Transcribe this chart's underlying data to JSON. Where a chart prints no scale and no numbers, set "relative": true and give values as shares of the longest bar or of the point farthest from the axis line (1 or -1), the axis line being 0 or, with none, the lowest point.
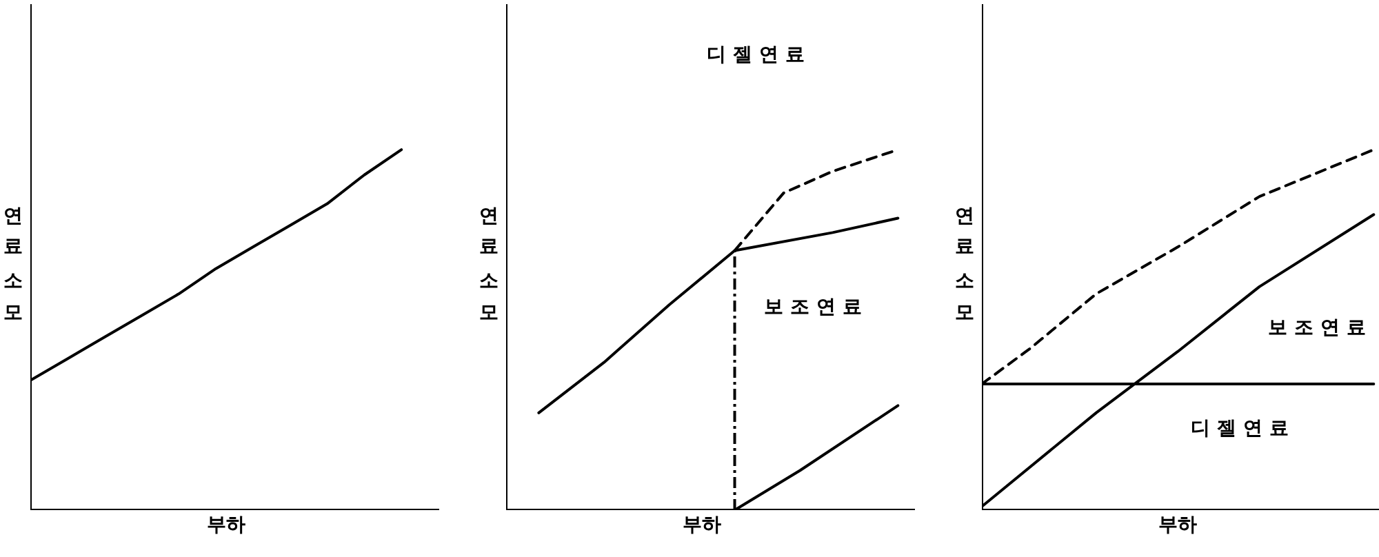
{
  "chart_data": [
    {
      "type": "line",
      "relative": true,
      "xlabel": "부하",
      "ylabel": "연료소모",
      "grid": false,
      "legend": false,
      "marker": "none",
      "categories": [
        null,
        null,
        null,
        null,
        null,
        null,
        null,
        null,
        null,
        null,
        null,
        null
      ],
      "series": [
        {
          "color": "#000000",
          "line_style": "solid",
          "values": [
            0.36,
            0.42,
            0.48,
            0.54,
            0.6,
            0.67,
            0.73,
            0.79,
            0.85,
            0.93,
            1,
            null
          ]
        }
      ]
    },
    {
      "type": "line",
      "relative": true,
      "xlabel": "부하",
      "ylabel": "연료소모",
      "grid": false,
      "legend": false,
      "marker": "none",
      "annotations": [
        "디젤연료",
        "보조연료"
      ],
      "categories": [
        null,
        null,
        null,
        null,
        null,
        null,
        null,
        null,
        null,
        null,
        null,
        null,
        null,
        null,
        null,
        null,
        null,
        null,
        null,
        null,
        null,
        null,
        null,
        null,
        null,
        null
      ],
      "series": [
        {
          "color": "#000000",
          "line_style": "solid",
          "values": [
            null,
            null,
            0.27,
            null,
            null,
            null,
            0.41,
            null,
            null,
            null,
            0.57,
            null,
            null,
            null,
            0.72,
            null,
            null,
            null,
            null,
            null,
            0.77,
            null,
            null,
            null,
            0.81,
            null
          ]
        },
        {
          "color": "#000000",
          "line_style": "dashed",
          "values": [
            null,
            null,
            null,
            null,
            null,
            null,
            null,
            null,
            null,
            null,
            null,
            null,
            null,
            null,
            0.72,
            null,
            null,
            0.88,
            null,
            null,
            0.94,
            null,
            null,
            null,
            1,
            null
          ]
        },
        {
          "color": "#000000",
          "line_style": "solid",
          "values": [
            null,
            null,
            null,
            null,
            null,
            null,
            null,
            null,
            null,
            null,
            null,
            null,
            null,
            null,
            0,
            null,
            null,
            null,
            0.11,
            null,
            null,
            null,
            null,
            null,
            0.29,
            null
          ]
        }
      ]
    },
    {
      "type": "line",
      "relative": true,
      "xlabel": "부하",
      "ylabel": "연료소모",
      "grid": false,
      "legend": false,
      "marker": "none",
      "annotations": [
        "보조연료",
        "디젤연료"
      ],
      "categories": [
        null,
        null,
        null,
        null,
        null,
        null,
        null,
        null,
        null,
        null,
        null,
        null,
        null,
        null,
        null,
        null,
        null,
        null,
        null,
        null,
        null,
        null,
        null,
        null,
        null,
        null
      ],
      "series": [
        {
          "color": "#000000",
          "line_style": "solid",
          "values": [
            0.35,
            null,
            null,
            null,
            null,
            null,
            null,
            null,
            null,
            null,
            null,
            null,
            null,
            null,
            null,
            null,
            null,
            null,
            null,
            null,
            null,
            null,
            null,
            null,
            0.35,
            null
          ]
        },
        {
          "color": "#000000",
          "line_style": "solid",
          "values": [
            0.01,
            null,
            null,
            null,
            null,
            null,
            null,
            0.27,
            null,
            null,
            null,
            null,
            0.44,
            null,
            null,
            null,
            null,
            0.62,
            null,
            null,
            null,
            null,
            null,
            null,
            0.82,
            null
          ]
        },
        {
          "color": "#000000",
          "line_style": "dashed",
          "values": [
            0.35,
            null,
            null,
            0.45,
            null,
            null,
            null,
            0.6,
            null,
            null,
            null,
            null,
            0.73,
            null,
            null,
            null,
            null,
            0.87,
            null,
            null,
            null,
            null,
            null,
            null,
            1,
            null
          ]
        }
      ]
    }
  ]
}
